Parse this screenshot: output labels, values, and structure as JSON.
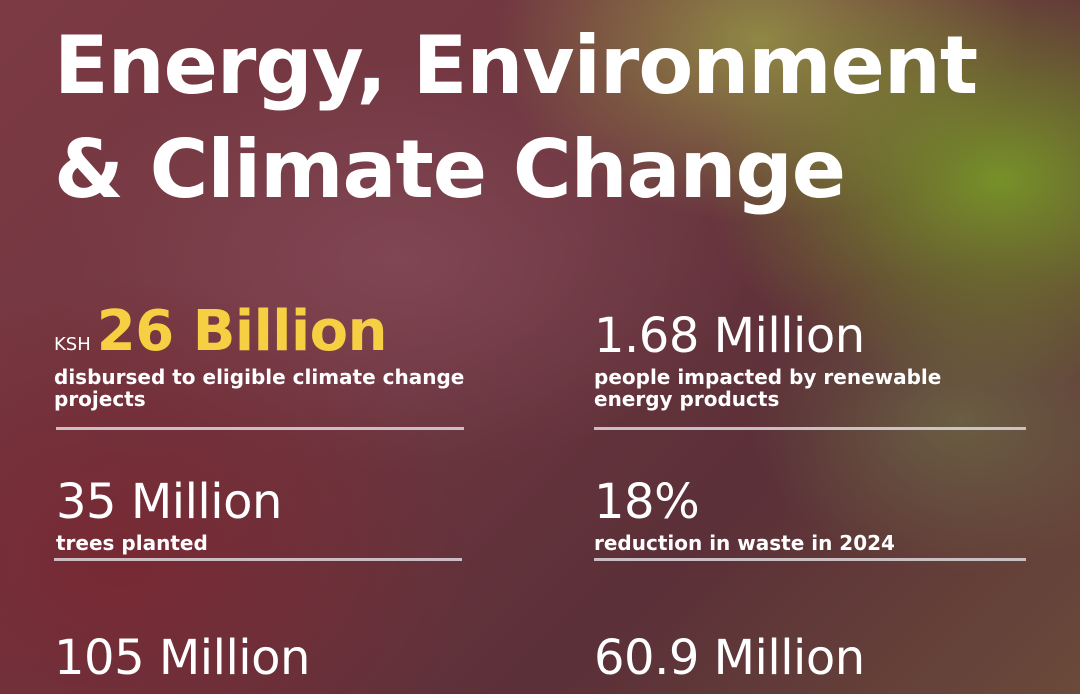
{
  "header": {
    "title_line1": "Energy, Environment",
    "title_line2": "& Climate Change"
  },
  "stats": {
    "climate_funds": {
      "prefix": "KSH",
      "value": "26 Billion",
      "description": "disbursed to eligible climate change projects"
    },
    "renewable": {
      "value": "1.68 Million",
      "description": "people impacted by renewable energy products"
    },
    "trees": {
      "value": "35 Million",
      "description": "trees planted"
    },
    "waste": {
      "value": "18%",
      "description": "reduction in waste in 2024"
    },
    "water": {
      "value": "105 Million"
    },
    "carbon": {
      "value": "60.9 Million"
    }
  },
  "colors": {
    "highlight": "#f6cf43",
    "text": "#ffffff",
    "divider": "#dcd7dc"
  }
}
